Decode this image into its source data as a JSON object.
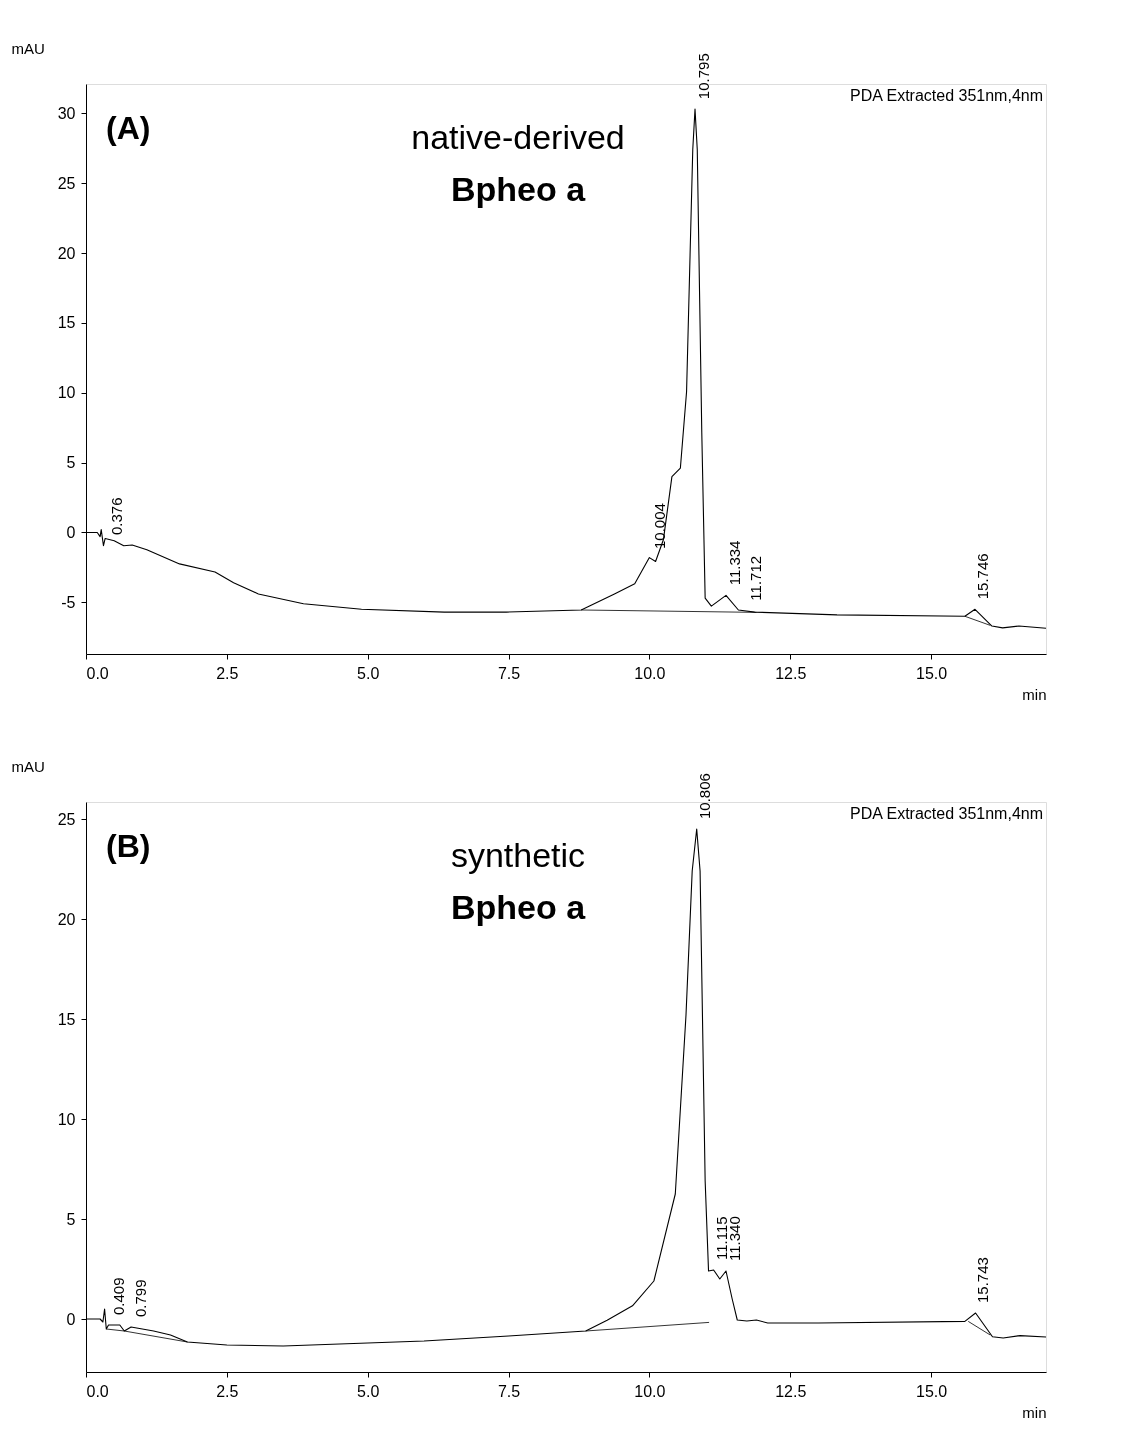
{
  "chart_data": [
    {
      "type": "line",
      "xlabel": "min",
      "ylabel": "mAU",
      "xlim": [
        0,
        17.04
      ],
      "ylim": [
        -8.7,
        32.1
      ],
      "xticks": [
        {
          "value": 0,
          "label": "0.0"
        },
        {
          "value": 2.5,
          "label": "2.5"
        },
        {
          "value": 5,
          "label": "5.0"
        },
        {
          "value": 7.5,
          "label": "7.5"
        },
        {
          "value": 10,
          "label": "10.0"
        },
        {
          "value": 12.5,
          "label": "12.5"
        },
        {
          "value": 15,
          "label": "15.0"
        }
      ],
      "yticks": [
        -5,
        0,
        5,
        10,
        15,
        20,
        25,
        30
      ],
      "grid": false,
      "series": [
        {
          "color": "#000000",
          "x": [
            0,
            0.2,
            0.25,
            0.27,
            0.31,
            0.34,
            0.5,
            0.67,
            0.82,
            1.08,
            1.66,
            2.29,
            2.62,
            3.06,
            3.86,
            4.89,
            6.36,
            7.46,
            8.79,
            9.38,
            9.74,
            10.0,
            10.11,
            10.25,
            10.4,
            10.55,
            10.66,
            10.77,
            10.81,
            10.85,
            10.93,
            10.99,
            11.1,
            11.36,
            11.58,
            11.87,
            13.33,
            15.6,
            15.78,
            16.08,
            16.27,
            16.56,
            17.04
          ],
          "values": [
            0,
            0,
            -0.3,
            0.2,
            -0.95,
            -0.43,
            -0.6,
            -0.95,
            -0.9,
            -1.24,
            -2.25,
            -2.83,
            -3.6,
            -4.4,
            -5.1,
            -5.5,
            -5.7,
            -5.7,
            -5.55,
            -4.4,
            -3.67,
            -1.8,
            -2.08,
            -0.5,
            4.0,
            4.6,
            10.07,
            27.4,
            30.3,
            27.4,
            7.17,
            -4.7,
            -5.27,
            -4.5,
            -5.55,
            -5.7,
            -5.9,
            -6.0,
            -5.5,
            -6.7,
            -6.83,
            -6.7,
            -6.86
          ]
        },
        {
          "color": "#000000",
          "x": [
            8.79,
            11.9
          ],
          "values": [
            -5.55,
            -5.72
          ]
        },
        {
          "color": "#000000",
          "x": [
            15.6,
            16.05
          ],
          "values": [
            -6.0,
            -6.65
          ]
        }
      ],
      "annotations": [
        "(A)",
        "native-derived",
        "Bpheo a",
        {
          "text": "0.376",
          "x": 0.376,
          "y": -0.9
        },
        {
          "text": "10.004",
          "x": 10.004,
          "y": -1.9
        },
        {
          "text": "10.795",
          "x": 10.795,
          "y": 30.3
        },
        {
          "text": "11.334",
          "x": 11.334,
          "y": -4.5
        },
        {
          "text": "11.712",
          "x": 11.712,
          "y": -5.6
        },
        {
          "text": "15.746",
          "x": 15.746,
          "y": -5.5
        },
        "PDA Extracted 351nm,4nm"
      ]
    },
    {
      "type": "line",
      "xlabel": "min",
      "ylabel": "mAU",
      "xlim": [
        0,
        17.04
      ],
      "ylim": [
        -2.65,
        25.85
      ],
      "xticks": [
        {
          "value": 0,
          "label": "0.0"
        },
        {
          "value": 2.5,
          "label": "2.5"
        },
        {
          "value": 5,
          "label": "5.0"
        },
        {
          "value": 7.5,
          "label": "7.5"
        },
        {
          "value": 10,
          "label": "10.0"
        },
        {
          "value": 12.5,
          "label": "12.5"
        },
        {
          "value": 15,
          "label": "15.0"
        }
      ],
      "yticks": [
        0,
        5,
        10,
        15,
        20,
        25
      ],
      "grid": false,
      "series": [
        {
          "color": "#000000",
          "x": [
            0,
            0.25,
            0.3,
            0.33,
            0.36,
            0.4,
            0.6,
            0.68,
            0.8,
            1.2,
            1.5,
            1.8,
            2.5,
            3.5,
            5.0,
            6.0,
            7.5,
            8.87,
            9.25,
            9.7,
            10.08,
            10.46,
            10.65,
            10.76,
            10.84,
            10.9,
            10.99,
            11.05,
            11.14,
            11.25,
            11.36,
            11.47,
            11.56,
            11.73,
            11.9,
            12.1,
            13.0,
            15.6,
            15.79,
            16.09,
            16.28,
            16.58,
            17.04
          ],
          "values": [
            0,
            0,
            -0.15,
            0.5,
            -0.5,
            -0.3,
            -0.3,
            -0.6,
            -0.4,
            -0.6,
            -0.8,
            -1.15,
            -1.3,
            -1.35,
            -1.2,
            -1.1,
            -0.85,
            -0.6,
            -0.06,
            0.66,
            1.9,
            6.25,
            15.2,
            22.4,
            24.5,
            22.4,
            6.9,
            2.4,
            2.45,
            2.0,
            2.4,
            1.0,
            -0.05,
            -0.1,
            -0.05,
            -0.2,
            -0.2,
            -0.12,
            0.3,
            -0.89,
            -0.95,
            -0.83,
            -0.9
          ]
        },
        {
          "color": "#000000",
          "x": [
            0.36,
            0.68,
            1.8
          ],
          "values": [
            -0.5,
            -0.6,
            -1.15
          ]
        },
        {
          "color": "#000000",
          "x": [
            8.87,
            11.06
          ],
          "values": [
            -0.6,
            -0.17
          ]
        },
        {
          "color": "#000000",
          "x": [
            15.66,
            16.05
          ],
          "values": [
            -0.12,
            -0.8
          ]
        }
      ],
      "annotations": [
        "(B)",
        "synthetic",
        "Bpheo a",
        {
          "text": "0.409",
          "x": 0.409,
          "y": -0.3
        },
        {
          "text": "0.799",
          "x": 0.799,
          "y": -0.4
        },
        {
          "text": "10.806",
          "x": 10.806,
          "y": 24.5
        },
        {
          "text": "11.115",
          "x": 11.115,
          "y": 2.45
        },
        {
          "text": "11.340",
          "x": 11.34,
          "y": 2.4
        },
        {
          "text": "15.743",
          "x": 15.743,
          "y": 0.3
        },
        "PDA Extracted 351nm,4nm"
      ]
    }
  ]
}
